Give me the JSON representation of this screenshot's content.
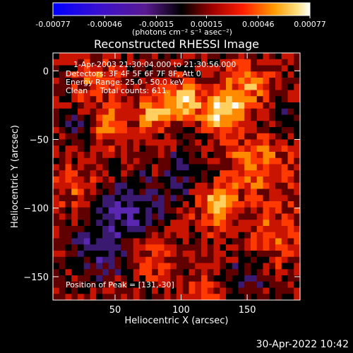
{
  "chart_data": {
    "type": "heatmap",
    "title": "Reconstructed RHESSI Image",
    "xlabel": "Heliocentric X (arcsec)",
    "ylabel": "Heliocentric Y (arcsec)",
    "xlim": [
      3,
      190
    ],
    "ylim": [
      -167,
      13
    ],
    "xticks": [
      50,
      100,
      150
    ],
    "yticks": [
      0,
      -50,
      -100,
      -150
    ],
    "colorbar": {
      "range": [
        -0.00077,
        0.00077
      ],
      "ticks": [
        "-0.00077",
        "-0.00046",
        "-0.00015",
        "0.00015",
        "0.00046",
        "0.00077"
      ],
      "tick_values": [
        -0.00077,
        -0.00046,
        -0.00015,
        0.00015,
        0.00046,
        0.00077
      ],
      "units_label": "(photons cm⁻² s⁻¹ asec⁻²)"
    },
    "annotations": [
      "1-Apr-2003 21:30:04.000 to 21:30:56.000",
      "Detectors: 3F 4F 5F 6F 7F 8F, Att 0",
      "Energy Range: 25.0 - 50.0 keV",
      "Clean     Total counts: 611.",
      "Position of Peak = [131,-30]"
    ],
    "peak": {
      "x": 131,
      "y": -30
    },
    "colors": {
      "negative": "#1a10d8",
      "mid_negative": "#5a28b0",
      "zero": "#000000",
      "positive": "#c81400",
      "high": "#ff8a00",
      "max": "#ffffff"
    }
  },
  "footer": {
    "timestamp": "30-Apr-2022 10:42"
  }
}
